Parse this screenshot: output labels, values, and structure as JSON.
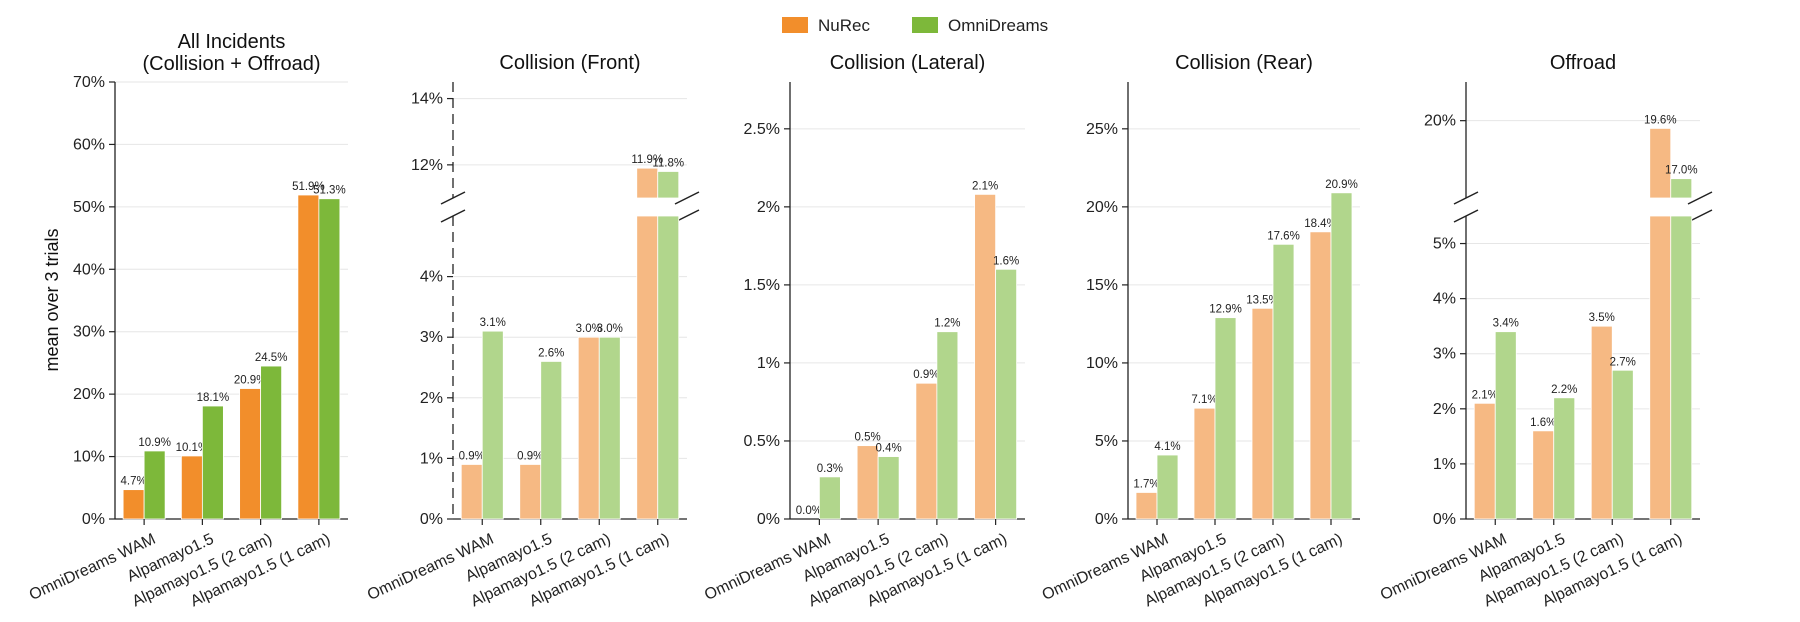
{
  "legend": {
    "items": [
      {
        "label": "NuRec",
        "color": "#F28E2B"
      },
      {
        "label": "OmniDreams",
        "color": "#7DB83A"
      }
    ]
  },
  "colors": {
    "nurec": "#F28E2B",
    "omni": "#7DB83A",
    "nurec_light": "#F6B983",
    "omni_light": "#B1D68C"
  },
  "ylabel": "mean over 3 trials",
  "chart_data": [
    {
      "type": "bar",
      "title": "All Incidents\n(Collision + Offroad)",
      "categories": [
        "OmniDreams WAM",
        "Alpamayo1.5",
        "Alpamayo1.5 (2 cam)",
        "Alpamayo1.5 (1 cam)"
      ],
      "series": [
        {
          "name": "NuRec",
          "values": [
            4.7,
            10.1,
            20.9,
            51.9
          ],
          "labels": [
            "4.7%",
            "10.1%",
            "20.9%",
            "51.9%"
          ]
        },
        {
          "name": "OmniDreams",
          "values": [
            10.9,
            18.1,
            24.5,
            51.3
          ],
          "labels": [
            "10.9%",
            "18.1%",
            "24.5%",
            "51.3%"
          ]
        }
      ],
      "ylim": [
        0,
        70
      ],
      "yticks": [
        0,
        10,
        20,
        30,
        40,
        50,
        60,
        70
      ],
      "ytick_labels": [
        "0%",
        "10%",
        "20%",
        "30%",
        "40%",
        "50%",
        "60%",
        "70%"
      ],
      "ylabel": "mean over 3 trials",
      "broken_axis": false,
      "grid": true
    },
    {
      "type": "bar",
      "title": "Collision (Front)",
      "categories": [
        "OmniDreams WAM",
        "Alpamayo1.5",
        "Alpamayo1.5 (2 cam)",
        "Alpamayo1.5 (1 cam)"
      ],
      "series": [
        {
          "name": "NuRec",
          "values": [
            0.9,
            0.9,
            3.0,
            11.9
          ],
          "labels": [
            "0.9%",
            "0.9%",
            "3.0%",
            "11.9%"
          ]
        },
        {
          "name": "OmniDreams",
          "values": [
            3.1,
            2.6,
            3.0,
            11.8
          ],
          "labels": [
            "3.1%",
            "2.6%",
            "3.0%",
            "11.8%"
          ]
        }
      ],
      "broken_axis": true,
      "ylim_lower": [
        0,
        5
      ],
      "ylim_upper": [
        11,
        14.5
      ],
      "yticks": [
        0,
        1,
        2,
        3,
        4,
        12,
        14
      ],
      "ytick_labels": [
        "0%",
        "1%",
        "2%",
        "3%",
        "4%",
        "12%",
        "14%"
      ],
      "grid": true
    },
    {
      "type": "bar",
      "title": "Collision (Lateral)",
      "categories": [
        "OmniDreams WAM",
        "Alpamayo1.5",
        "Alpamayo1.5 (2 cam)",
        "Alpamayo1.5 (1 cam)"
      ],
      "series": [
        {
          "name": "NuRec",
          "values": [
            0.0,
            0.47,
            0.87,
            2.08
          ],
          "labels": [
            "0.0%",
            "0.5%",
            "0.9%",
            "2.1%"
          ]
        },
        {
          "name": "OmniDreams",
          "values": [
            0.27,
            0.4,
            1.2,
            1.6
          ],
          "labels": [
            "0.3%",
            "0.4%",
            "1.2%",
            "1.6%"
          ]
        }
      ],
      "ylim": [
        0,
        2.8
      ],
      "yticks": [
        0,
        0.5,
        1,
        1.5,
        2,
        2.5
      ],
      "ytick_labels": [
        "0%",
        "0.5%",
        "1%",
        "1.5%",
        "2%",
        "2.5%"
      ],
      "broken_axis": false,
      "grid": true
    },
    {
      "type": "bar",
      "title": "Collision (Rear)",
      "categories": [
        "OmniDreams WAM",
        "Alpamayo1.5",
        "Alpamayo1.5 (2 cam)",
        "Alpamayo1.5 (1 cam)"
      ],
      "series": [
        {
          "name": "NuRec",
          "values": [
            1.7,
            7.1,
            13.5,
            18.4
          ],
          "labels": [
            "1.7%",
            "7.1%",
            "13.5%",
            "18.4%"
          ]
        },
        {
          "name": "OmniDreams",
          "values": [
            4.1,
            12.9,
            17.6,
            20.9
          ],
          "labels": [
            "4.1%",
            "12.9%",
            "17.6%",
            "20.9%"
          ]
        }
      ],
      "ylim": [
        0,
        28
      ],
      "yticks": [
        0,
        5,
        10,
        15,
        20,
        25
      ],
      "ytick_labels": [
        "0%",
        "5%",
        "10%",
        "15%",
        "20%",
        "25%"
      ],
      "broken_axis": false,
      "grid": true
    },
    {
      "type": "bar",
      "title": "Offroad",
      "categories": [
        "OmniDreams WAM",
        "Alpamayo1.5",
        "Alpamayo1.5 (2 cam)",
        "Alpamayo1.5 (1 cam)"
      ],
      "series": [
        {
          "name": "NuRec",
          "values": [
            2.1,
            1.6,
            3.5,
            19.6
          ],
          "labels": [
            "2.1%",
            "1.6%",
            "3.5%",
            "19.6%"
          ]
        },
        {
          "name": "OmniDreams",
          "values": [
            3.4,
            2.2,
            2.7,
            17.0
          ],
          "labels": [
            "3.4%",
            "2.2%",
            "2.7%",
            "17.0%"
          ]
        }
      ],
      "broken_axis": true,
      "ylim_lower": [
        0,
        5.5
      ],
      "ylim_upper": [
        16,
        22
      ],
      "yticks": [
        0,
        1,
        2,
        3,
        4,
        5,
        20
      ],
      "ytick_labels": [
        "0%",
        "1%",
        "2%",
        "3%",
        "4%",
        "5%",
        "20%"
      ],
      "grid": true
    }
  ]
}
